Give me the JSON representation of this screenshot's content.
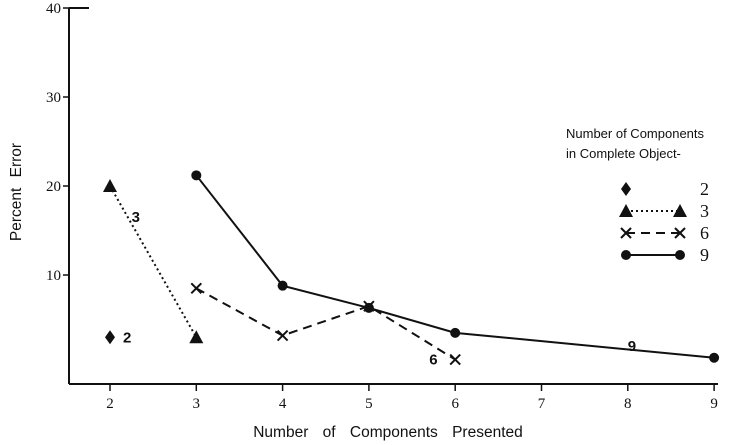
{
  "chart_data": {
    "type": "line",
    "title": "",
    "xlabel": "Number of Components Presented",
    "ylabel": "Percent Error",
    "xlim": [
      1.5,
      9.1
    ],
    "ylim": [
      -0.5,
      40
    ],
    "x_ticks": [
      2,
      3,
      4,
      5,
      6,
      7,
      8,
      9
    ],
    "y_ticks": [
      10,
      20,
      30,
      40
    ],
    "grid": false,
    "legend": {
      "title_lines": [
        "Number of Components",
        "in Complete Object-"
      ],
      "placement": "right",
      "entries": [
        "2",
        "3",
        "6",
        "9"
      ]
    },
    "series": [
      {
        "name": "2",
        "marker": "diamond",
        "line": "none",
        "color": "#111111",
        "label": "2",
        "points": [
          {
            "x": 2,
            "y": 3
          }
        ]
      },
      {
        "name": "3",
        "marker": "triangle",
        "line": "dotted",
        "color": "#111111",
        "label": "3",
        "points": [
          {
            "x": 2,
            "y": 20
          },
          {
            "x": 3,
            "y": 3
          }
        ]
      },
      {
        "name": "6",
        "marker": "x",
        "line": "dashed",
        "color": "#111111",
        "label": "6",
        "points": [
          {
            "x": 3,
            "y": 8.5
          },
          {
            "x": 4,
            "y": 3.2
          },
          {
            "x": 5,
            "y": 6.5
          },
          {
            "x": 6,
            "y": 0.5
          }
        ]
      },
      {
        "name": "9",
        "marker": "circle",
        "line": "solid",
        "color": "#111111",
        "label": "9",
        "points": [
          {
            "x": 3,
            "y": 21.2
          },
          {
            "x": 4,
            "y": 8.8
          },
          {
            "x": 5,
            "y": 6.3
          },
          {
            "x": 6,
            "y": 3.5
          },
          {
            "x": 9,
            "y": 0.7
          }
        ]
      }
    ]
  }
}
